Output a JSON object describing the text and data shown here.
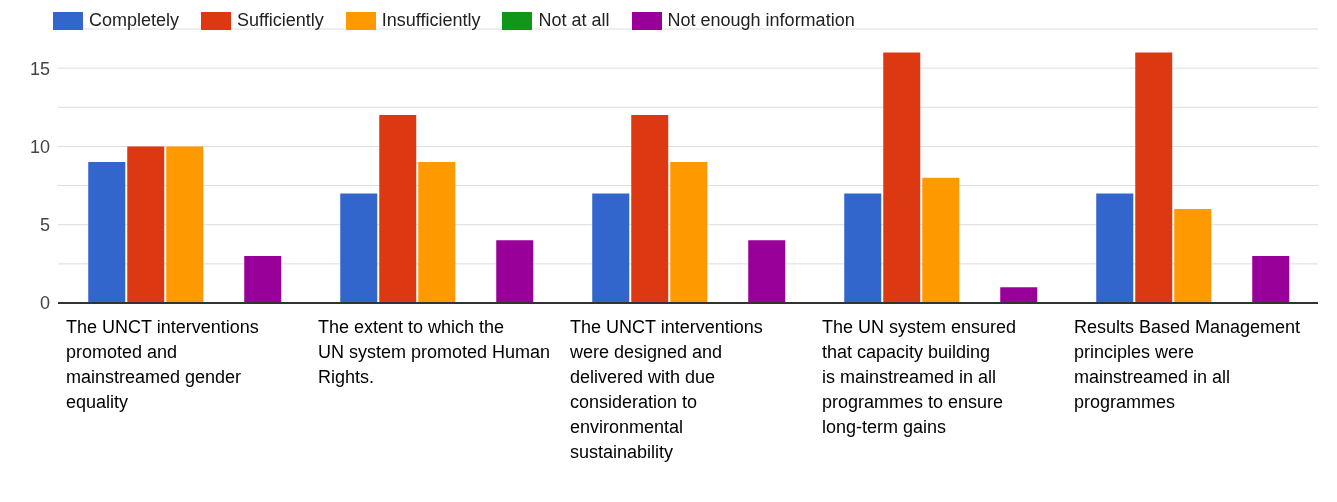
{
  "chart_data": {
    "type": "bar",
    "categories": [
      "The UNCT interventions promoted and mainstreamed gender equality",
      "The extent to which the UN system promoted Human Rights.",
      "The UNCT interventions were designed and delivered with due consideration to environmental sustainability",
      "The UN system ensured that capacity building is mainstreamed in all programmes to ensure long-term gains",
      "Results Based Management principles were mainstreamed in all programmes"
    ],
    "series": [
      {
        "name": "Completely",
        "color": "#3366cc",
        "values": [
          9,
          7,
          7,
          7,
          7
        ]
      },
      {
        "name": "Sufficiently",
        "color": "#dc3912",
        "values": [
          10,
          12,
          12,
          16,
          16
        ]
      },
      {
        "name": "Insufficiently",
        "color": "#ff9900",
        "values": [
          10,
          9,
          9,
          8,
          6
        ]
      },
      {
        "name": "Not at all",
        "color": "#109618",
        "values": [
          0,
          0,
          0,
          0,
          0
        ]
      },
      {
        "name": "Not enough information",
        "color": "#990099",
        "values": [
          3,
          4,
          4,
          1,
          3
        ]
      }
    ],
    "ylim": [
      0,
      17.5
    ],
    "yticks": [
      0,
      {
        "value": 2.5,
        "label": null
      },
      5,
      {
        "value": 7.5,
        "label": null
      },
      10,
      {
        "value": 12.5,
        "label": null
      },
      15,
      {
        "value": 17.5,
        "label": null
      }
    ],
    "grid": "y",
    "legend": "top left"
  }
}
